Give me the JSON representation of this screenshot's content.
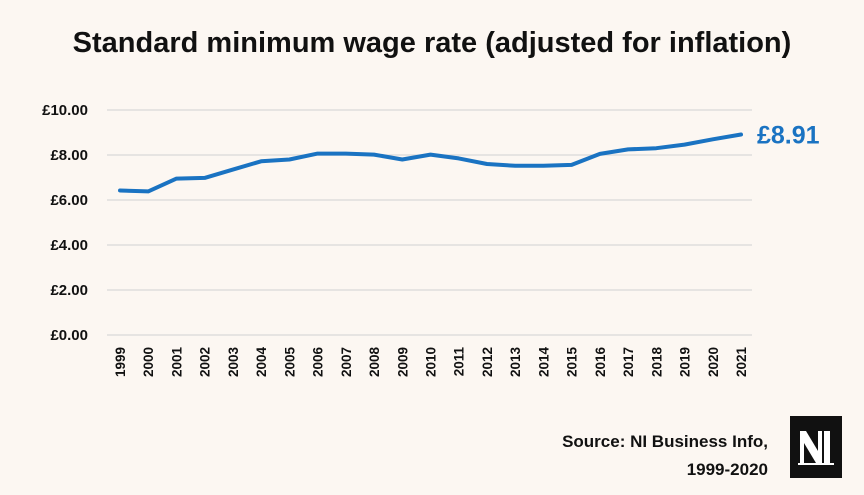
{
  "chart_data": {
    "type": "line",
    "title": "Standard minimum wage rate (adjusted for inflation)",
    "categories": [
      "1999",
      "2000",
      "2001",
      "2002",
      "2003",
      "2004",
      "2005",
      "2006",
      "2007",
      "2008",
      "2009",
      "2010",
      "2011",
      "2012",
      "2013",
      "2014",
      "2015",
      "2016",
      "2017",
      "2018",
      "2019",
      "2020",
      "2021"
    ],
    "series": [
      {
        "values": [
          6.42,
          6.38,
          6.95,
          6.98,
          7.35,
          7.72,
          7.8,
          8.06,
          8.06,
          8.02,
          7.8,
          8.02,
          7.85,
          7.6,
          7.52,
          7.52,
          7.56,
          8.05,
          8.25,
          8.3,
          8.46,
          8.7,
          8.91
        ],
        "color": "#1a73c2"
      }
    ],
    "y_ticks": [
      "£0.00",
      "£2.00",
      "£4.00",
      "£6.00",
      "£8.00",
      "£10.00"
    ],
    "ylim": [
      0,
      10
    ],
    "grid": true,
    "end_label": "£8.91"
  },
  "source": {
    "line1": "Source: NI Business Info,",
    "line2": "1999-2020"
  },
  "logo": {
    "text": "NI",
    "background": "#111111",
    "color": "#ffffff"
  }
}
